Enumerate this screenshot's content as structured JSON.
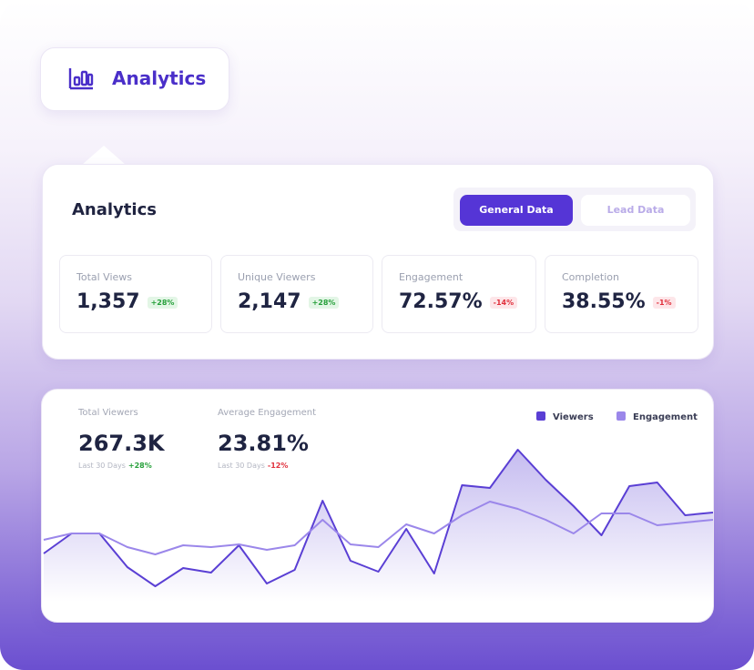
{
  "header": {
    "title": "Analytics"
  },
  "panel": {
    "title": "Analytics",
    "tabs": [
      "General Data",
      "Lead Data"
    ],
    "stats": [
      {
        "label": "Total Views",
        "value": "1,357",
        "change": "+28%"
      },
      {
        "label": "Unique Viewers",
        "value": "2,147",
        "change": "+28%"
      },
      {
        "label": "Engagement",
        "value": "72.57%",
        "change": "-14%"
      },
      {
        "label": "Completion",
        "value": "38.55%",
        "change": "-1%"
      }
    ]
  },
  "chart_data": {
    "type": "line",
    "summary": [
      {
        "label": "Total Viewers",
        "value": "267.3K",
        "period": "Last 30 Days",
        "change": "+28%"
      },
      {
        "label": "Average Engagement",
        "value": "23.81%",
        "period": "Last 30 Days",
        "change": "-12%"
      }
    ],
    "series": [
      {
        "name": "Viewers",
        "color": "#5a3fd4",
        "values": [
          53,
          75,
          75,
          38,
          17,
          37,
          32,
          62,
          20,
          35,
          111,
          45,
          33,
          80,
          31,
          128,
          125,
          167,
          134,
          105,
          73,
          127,
          131,
          95,
          98
        ]
      },
      {
        "name": "Engagement",
        "color": "#9b87ea",
        "values": [
          68,
          75,
          75,
          60,
          52,
          62,
          60,
          63,
          57,
          62,
          90,
          63,
          60,
          85,
          75,
          95,
          110,
          102,
          90,
          75,
          97,
          97,
          84,
          87,
          90
        ]
      }
    ]
  }
}
